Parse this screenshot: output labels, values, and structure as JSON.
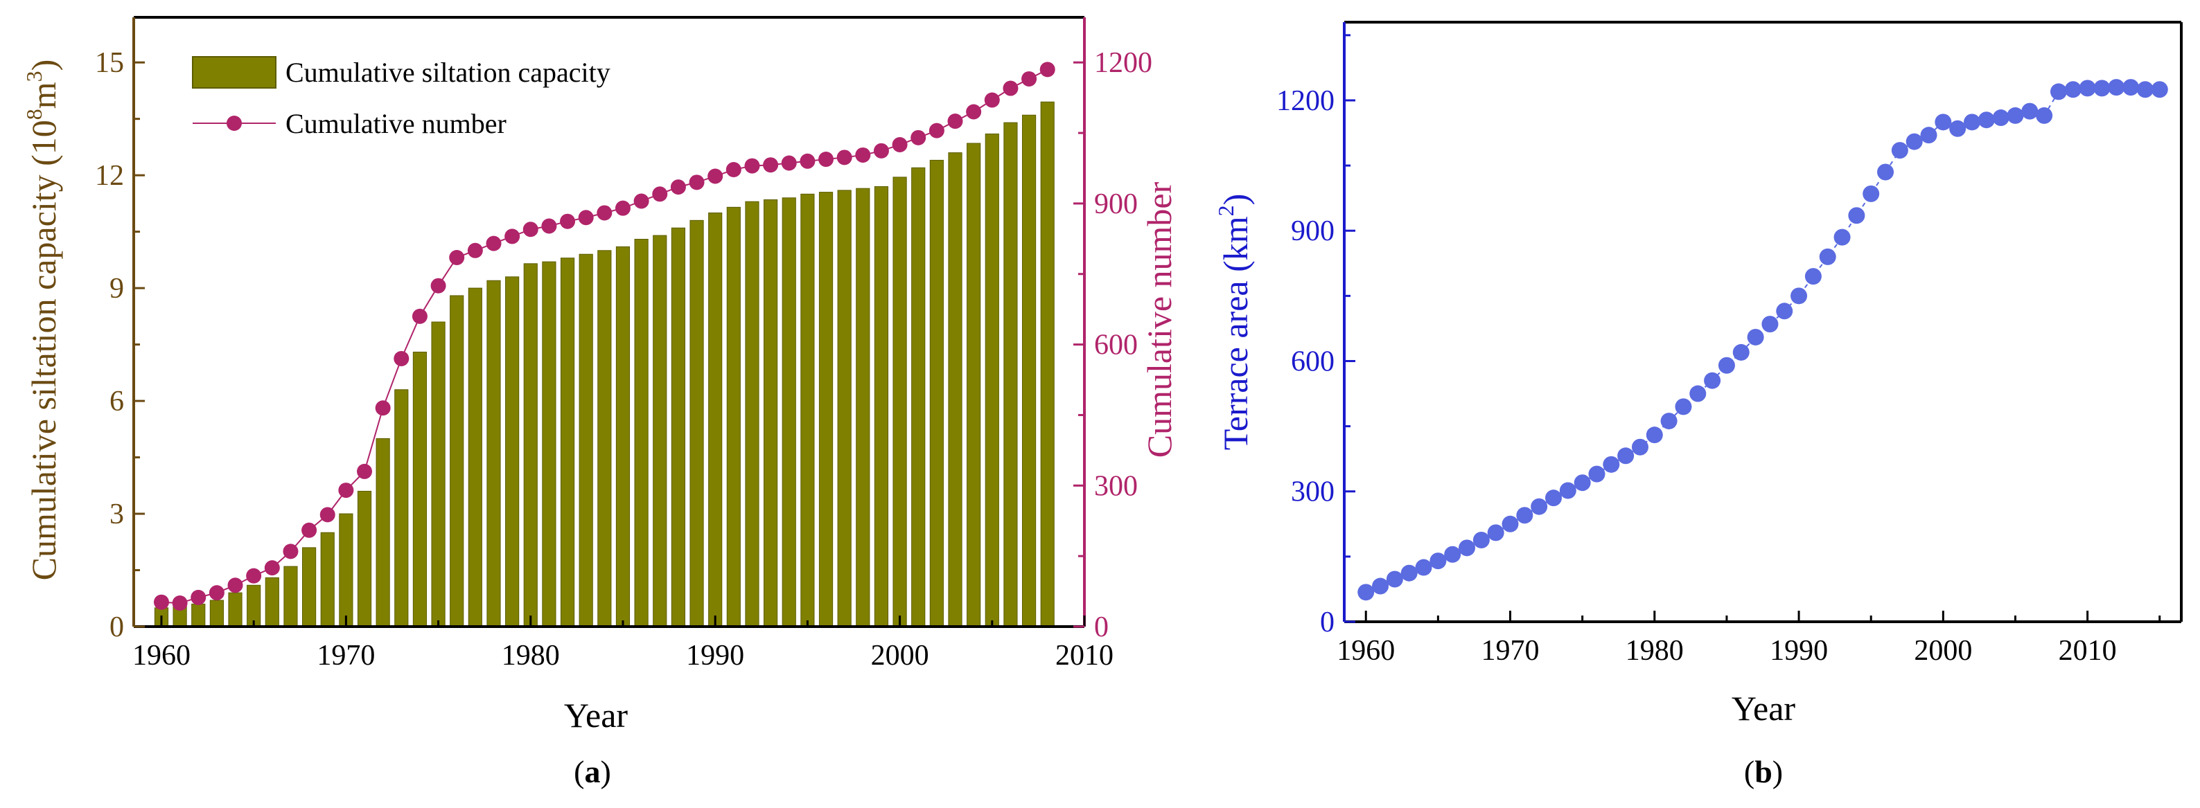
{
  "colors": {
    "bar": "#808000",
    "bar_stroke": "#5c5c00",
    "number": "#b0246a",
    "area": "#5b6be0",
    "axis_left_a": "#6b4a12",
    "axis_right_a": "#b0246a",
    "axis_b": "#1a1acc",
    "black": "#000000"
  },
  "chart_data": [
    {
      "panel": "a",
      "type": "bar",
      "title": "",
      "xlabel": "Year",
      "ylabel": "Cumulative siltation capacity (10⁸m³)",
      "ylabel_prefix": "Cumulative siltation capacity (10",
      "ylabel_sup1": "8",
      "ylabel_mid": "m",
      "ylabel_sup2": "3",
      "ylabel_suffix": ")",
      "y2label": "Cumulative number",
      "xlim": [
        1958.5,
        2010
      ],
      "ylim": [
        0,
        16.2
      ],
      "y2lim": [
        0,
        1296
      ],
      "xticks": [
        1960,
        1970,
        1980,
        1990,
        2000,
        2010
      ],
      "yticks": [
        0,
        3,
        6,
        9,
        12,
        15
      ],
      "y2ticks": [
        0,
        300,
        600,
        900,
        1200
      ],
      "legend": [
        "Cumulative siltation capacity",
        "Cumulative number"
      ],
      "legend_position": "top-left",
      "x": [
        1960,
        1961,
        1962,
        1963,
        1964,
        1965,
        1966,
        1967,
        1968,
        1969,
        1970,
        1971,
        1972,
        1973,
        1974,
        1975,
        1976,
        1977,
        1978,
        1979,
        1980,
        1981,
        1982,
        1983,
        1984,
        1985,
        1986,
        1987,
        1988,
        1989,
        1990,
        1991,
        1992,
        1993,
        1994,
        1995,
        1996,
        1997,
        1998,
        1999,
        2000,
        2001,
        2002,
        2003,
        2004,
        2005,
        2006,
        2007,
        2008
      ],
      "series": [
        {
          "name": "Cumulative siltation capacity",
          "type": "bar",
          "axis": "left",
          "values": [
            0.5,
            0.55,
            0.6,
            0.7,
            0.9,
            1.1,
            1.3,
            1.6,
            2.1,
            2.5,
            3.0,
            3.6,
            5.0,
            6.3,
            7.3,
            8.1,
            8.8,
            9.0,
            9.2,
            9.3,
            9.65,
            9.7,
            9.8,
            9.9,
            10.0,
            10.1,
            10.3,
            10.4,
            10.6,
            10.8,
            11.0,
            11.15,
            11.3,
            11.35,
            11.4,
            11.5,
            11.55,
            11.6,
            11.65,
            11.7,
            11.95,
            12.2,
            12.4,
            12.6,
            12.85,
            13.1,
            13.4,
            13.6,
            13.95
          ]
        },
        {
          "name": "Cumulative number",
          "type": "line",
          "axis": "right",
          "values": [
            52,
            50,
            62,
            72,
            88,
            108,
            125,
            160,
            205,
            238,
            290,
            330,
            465,
            570,
            660,
            725,
            785,
            800,
            815,
            830,
            845,
            852,
            862,
            870,
            880,
            890,
            905,
            920,
            935,
            945,
            958,
            972,
            980,
            982,
            986,
            990,
            994,
            998,
            1003,
            1012,
            1025,
            1040,
            1055,
            1075,
            1095,
            1120,
            1145,
            1165,
            1185
          ]
        }
      ]
    },
    {
      "panel": "b",
      "type": "scatter",
      "title": "",
      "xlabel": "Year",
      "ylabel": "Terrace area (km²)",
      "ylabel_prefix": "Terrace area (km",
      "ylabel_sup": "2",
      "ylabel_suffix": ")",
      "xlim": [
        1958.5,
        2016.5
      ],
      "ylim": [
        0,
        1380
      ],
      "xticks": [
        1960,
        1970,
        1980,
        1990,
        2000,
        2010
      ],
      "yticks": [
        0,
        300,
        600,
        900,
        1200
      ],
      "x": [
        1960,
        1961,
        1962,
        1963,
        1964,
        1965,
        1966,
        1967,
        1968,
        1969,
        1970,
        1971,
        1972,
        1973,
        1974,
        1975,
        1976,
        1977,
        1978,
        1979,
        1980,
        1981,
        1982,
        1983,
        1984,
        1985,
        1986,
        1987,
        1988,
        1989,
        1990,
        1991,
        1992,
        1993,
        1994,
        1995,
        1996,
        1997,
        1998,
        1999,
        2000,
        2001,
        2002,
        2003,
        2004,
        2005,
        2006,
        2007,
        2008,
        2009,
        2010,
        2011,
        2012,
        2013,
        2014,
        2015
      ],
      "series": [
        {
          "name": "Terrace area",
          "values": [
            68,
            82,
            98,
            112,
            125,
            140,
            155,
            170,
            188,
            205,
            225,
            245,
            265,
            285,
            302,
            320,
            340,
            362,
            382,
            402,
            430,
            462,
            495,
            525,
            555,
            590,
            620,
            655,
            685,
            715,
            750,
            795,
            840,
            885,
            935,
            985,
            1035,
            1085,
            1105,
            1120,
            1150,
            1135,
            1150,
            1155,
            1160,
            1165,
            1175,
            1165,
            1220,
            1225,
            1228,
            1228,
            1230,
            1230,
            1225,
            1225
          ]
        }
      ]
    }
  ],
  "panel_labels": {
    "a": "a",
    "b": "b"
  }
}
